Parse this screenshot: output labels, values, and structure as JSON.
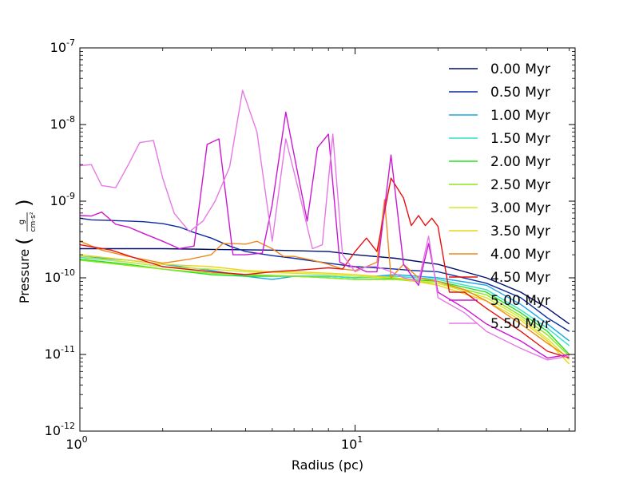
{
  "chart_data": {
    "type": "line",
    "title": "",
    "xlabel": "Radius (pc)",
    "ylabel": "Pressure (g/(cm·s²))",
    "xscale": "log",
    "yscale": "log",
    "xlim": [
      1,
      63
    ],
    "ylim": [
      1e-12,
      1e-07
    ],
    "grid": false,
    "legend_position": "top-right",
    "x_ticks": [
      {
        "value": 1,
        "label": "10",
        "exp": "0"
      },
      {
        "value": 10,
        "label": "10",
        "exp": "1"
      }
    ],
    "y_ticks": [
      {
        "value": 1e-12,
        "label": "10",
        "exp": "-12"
      },
      {
        "value": 1e-11,
        "label": "10",
        "exp": "-11"
      },
      {
        "value": 1e-10,
        "label": "10",
        "exp": "-10"
      },
      {
        "value": 1e-09,
        "label": "10",
        "exp": "-9"
      },
      {
        "value": 1e-08,
        "label": "10",
        "exp": "-8"
      },
      {
        "value": 1e-07,
        "label": "10",
        "exp": "-7"
      }
    ],
    "series": [
      {
        "name": "0.00 Myr",
        "color": "#000d6b",
        "x": [
          1.0,
          1.3,
          2.0,
          3.0,
          5.0,
          8.0,
          10,
          14,
          20,
          30,
          40,
          50,
          60
        ],
        "y": [
          2.4e-10,
          2.4e-10,
          2.4e-10,
          2.35e-10,
          2.3e-10,
          2.2e-10,
          2e-10,
          1.8e-10,
          1.5e-10,
          1e-10,
          6.5e-11,
          4e-11,
          2.5e-11
        ]
      },
      {
        "name": "0.50 Myr",
        "color": "#0b2aa3",
        "x": [
          1.0,
          1.1,
          1.3,
          1.5,
          1.7,
          2.0,
          2.3,
          2.6,
          3.0,
          3.5,
          4.0,
          5.0,
          6.0,
          8.0,
          10,
          12,
          14,
          16,
          20,
          30,
          40,
          50,
          60
        ],
        "y": [
          6e-10,
          5.7e-10,
          5.6e-10,
          5.5e-10,
          5.4e-10,
          5.1e-10,
          4.6e-10,
          3.9e-10,
          3.3e-10,
          2.6e-10,
          2.2e-10,
          1.95e-10,
          1.8e-10,
          1.55e-10,
          1.4e-10,
          1.35e-10,
          1.3e-10,
          1.25e-10,
          1.2e-10,
          8.5e-11,
          5.5e-11,
          3e-11,
          2e-11
        ]
      },
      {
        "name": "1.00 Myr",
        "color": "#19a6e6",
        "x": [
          1.0,
          1.5,
          2.0,
          3.0,
          4.0,
          5.0,
          6.0,
          8.0,
          10,
          14,
          20,
          30,
          40,
          50,
          60
        ],
        "y": [
          1.9e-10,
          1.7e-10,
          1.5e-10,
          1.25e-10,
          1.05e-10,
          9.5e-11,
          1.05e-10,
          1.05e-10,
          1e-10,
          1.1e-10,
          1e-10,
          8e-11,
          4.5e-11,
          2.5e-11,
          1.5e-11
        ]
      },
      {
        "name": "1.50 Myr",
        "color": "#2fe3c5",
        "x": [
          1.0,
          1.5,
          2.0,
          3.0,
          4.0,
          6.0,
          8.0,
          10,
          14,
          20,
          30,
          40,
          50,
          60
        ],
        "y": [
          1.85e-10,
          1.6e-10,
          1.4e-10,
          1.2e-10,
          1.1e-10,
          1.05e-10,
          1.05e-10,
          1e-10,
          1.05e-10,
          9.5e-11,
          7e-11,
          3.8e-11,
          2.2e-11,
          1.3e-11
        ]
      },
      {
        "name": "2.00 Myr",
        "color": "#22e01f",
        "x": [
          1.0,
          1.5,
          2.0,
          3.0,
          4.0,
          6.0,
          8.0,
          10,
          14,
          20,
          30,
          40,
          50,
          60
        ],
        "y": [
          1.75e-10,
          1.5e-10,
          1.3e-10,
          1.1e-10,
          1.05e-10,
          1.05e-10,
          1e-10,
          9.5e-11,
          9.8e-11,
          9e-11,
          6.5e-11,
          3.5e-11,
          2e-11,
          1e-11
        ]
      },
      {
        "name": "2.50 Myr",
        "color": "#8fe61c",
        "x": [
          1.0,
          1.5,
          2.0,
          3.0,
          4.0,
          6.0,
          8.0,
          10,
          14,
          20,
          30,
          40,
          50,
          60
        ],
        "y": [
          1.7e-10,
          1.45e-10,
          1.3e-10,
          1.15e-10,
          1.1e-10,
          1.05e-10,
          1e-10,
          9.5e-11,
          9.5e-11,
          8.5e-11,
          6e-11,
          3.2e-11,
          1.8e-11,
          9.5e-12
        ]
      },
      {
        "name": "3.00 Myr",
        "color": "#d2e82a",
        "x": [
          1.0,
          1.5,
          2.0,
          3.0,
          4.0,
          6.0,
          8.0,
          10,
          14,
          20,
          30,
          40,
          50,
          60
        ],
        "y": [
          1.9e-10,
          1.6e-10,
          1.4e-10,
          1.3e-10,
          1.2e-10,
          1.15e-10,
          1.1e-10,
          1.05e-10,
          1e-10,
          8.5e-11,
          5.5e-11,
          3e-11,
          1.6e-11,
          8.5e-12
        ]
      },
      {
        "name": "3.50 Myr",
        "color": "#e8d61a",
        "x": [
          1.0,
          1.5,
          2.0,
          3.0,
          4.0,
          5.0,
          6.0,
          8.0,
          10,
          14,
          20,
          30,
          40,
          50,
          60
        ],
        "y": [
          2e-10,
          1.7e-10,
          1.5e-10,
          1.4e-10,
          1.25e-10,
          1.2e-10,
          1.2e-10,
          1.15e-10,
          1.1e-10,
          1e-10,
          8e-11,
          5e-11,
          2.8e-11,
          1.5e-11,
          7.5e-12
        ]
      },
      {
        "name": "4.00 Myr",
        "color": "#f08a18",
        "x": [
          1.0,
          1.2,
          1.5,
          2.0,
          2.5,
          3.0,
          3.3,
          3.6,
          4.0,
          4.4,
          5.0,
          5.5,
          6.0,
          7.0,
          8.0,
          9.0,
          10,
          11,
          12,
          12.8,
          13.5,
          15,
          17,
          20,
          25,
          30,
          40,
          50,
          60
        ],
        "y": [
          3e-10,
          2.3e-10,
          1.9e-10,
          1.55e-10,
          1.75e-10,
          2e-10,
          2.8e-10,
          2.8e-10,
          2.75e-10,
          3e-10,
          2.4e-10,
          1.9e-10,
          1.9e-10,
          1.7e-10,
          1.5e-10,
          1.3e-10,
          1.25e-10,
          1.4e-10,
          1.6e-10,
          1.05e-09,
          1e-10,
          1.5e-10,
          1e-10,
          9e-11,
          7e-11,
          5e-11,
          2.5e-11,
          1.4e-11,
          9e-12
        ]
      },
      {
        "name": "4.50 Myr",
        "color": "#e8100f",
        "x": [
          1.0,
          1.3,
          1.6,
          2.0,
          3.0,
          4.0,
          5.0,
          6.0,
          7.0,
          8.0,
          9.0,
          10,
          11,
          12,
          13.5,
          15,
          16,
          17,
          18,
          19,
          20,
          22,
          25,
          30,
          40,
          50,
          60
        ],
        "y": [
          2.7e-10,
          2.3e-10,
          1.8e-10,
          1.4e-10,
          1.2e-10,
          1.1e-10,
          1.2e-10,
          1.25e-10,
          1.3e-10,
          1.35e-10,
          1.3e-10,
          2.2e-10,
          3.3e-10,
          2.2e-10,
          2e-09,
          1.1e-09,
          4.8e-10,
          6.5e-10,
          4.8e-10,
          6e-10,
          4.7e-10,
          6.5e-11,
          6.5e-11,
          4e-11,
          2e-11,
          1.1e-11,
          9e-12
        ]
      },
      {
        "name": "5.00 Myr",
        "color": "#cc18d4",
        "x": [
          1.0,
          1.1,
          1.2,
          1.35,
          1.5,
          1.7,
          2.0,
          2.3,
          2.6,
          2.9,
          3.2,
          3.6,
          4.0,
          4.6,
          5.0,
          5.6,
          6.1,
          6.7,
          7.3,
          8.0,
          8.8,
          9.5,
          10,
          11,
          12,
          13.5,
          15,
          17,
          18.5,
          20,
          25,
          30,
          40,
          50,
          60
        ],
        "y": [
          6.5e-10,
          6.4e-10,
          7.2e-10,
          5e-10,
          4.6e-10,
          3.8e-10,
          3e-10,
          2.4e-10,
          2.6e-10,
          5.5e-09,
          6.5e-09,
          2e-10,
          2e-10,
          2.1e-10,
          9e-10,
          1.45e-08,
          3e-09,
          5.5e-10,
          5e-09,
          7.5e-09,
          1.6e-10,
          1.4e-10,
          1.4e-10,
          1.2e-10,
          1.2e-10,
          4e-09,
          1.5e-10,
          8e-11,
          2.8e-10,
          6.5e-11,
          4e-11,
          2.5e-11,
          1.5e-11,
          9e-12,
          1e-11
        ]
      },
      {
        "name": "5.50 Myr",
        "color": "#e678e6",
        "x": [
          1.0,
          1.1,
          1.2,
          1.35,
          1.5,
          1.65,
          1.85,
          2.0,
          2.2,
          2.5,
          2.8,
          3.1,
          3.5,
          3.9,
          4.4,
          5.0,
          5.6,
          6.2,
          7.0,
          7.6,
          8.3,
          9.0,
          10,
          11,
          12,
          13.5,
          15,
          17,
          18.5,
          20,
          25,
          30,
          40,
          50,
          60
        ],
        "y": [
          2.9e-09,
          3e-09,
          1.6e-09,
          1.5e-09,
          3e-09,
          5.8e-09,
          6.2e-09,
          2e-09,
          7e-10,
          4e-10,
          5.5e-10,
          1e-09,
          2.8e-09,
          2.8e-08,
          8e-09,
          3e-10,
          6.5e-09,
          1.5e-09,
          2.4e-10,
          2.7e-10,
          7.5e-09,
          2e-10,
          1.2e-10,
          1.4e-10,
          1.4e-10,
          1.2e-10,
          1e-10,
          9e-11,
          3.5e-10,
          5.5e-11,
          3.5e-11,
          2e-11,
          1.2e-11,
          8.5e-12,
          9.5e-12
        ]
      }
    ]
  }
}
